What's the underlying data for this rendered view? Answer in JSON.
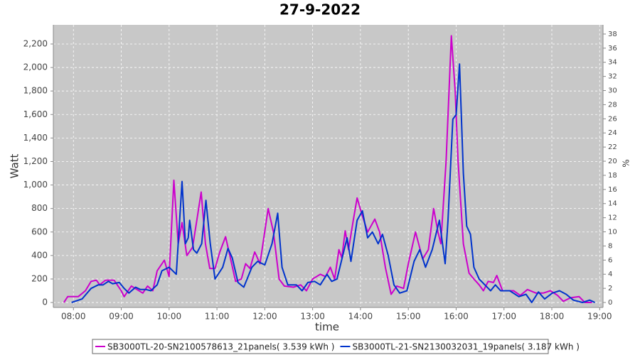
{
  "chart_data": {
    "type": "line",
    "title": "27-9-2022",
    "xlabel": "time",
    "ylabel": "Watt",
    "y2label": "%",
    "xlim": [
      7.58,
      19.07
    ],
    "ylim": [
      -42,
      2363
    ],
    "y2lim": [
      -0.7,
      39.3
    ],
    "xticks": [
      {
        "value": 8,
        "label": "08:00"
      },
      {
        "value": 9,
        "label": "09:00"
      },
      {
        "value": 10,
        "label": "10:00"
      },
      {
        "value": 11,
        "label": "11:00"
      },
      {
        "value": 12,
        "label": "12:00"
      },
      {
        "value": 13,
        "label": "13:00"
      },
      {
        "value": 14,
        "label": "14:00"
      },
      {
        "value": 15,
        "label": "15:00"
      },
      {
        "value": 16,
        "label": "16:00"
      },
      {
        "value": 17,
        "label": "17:00"
      },
      {
        "value": 18,
        "label": "18:00"
      },
      {
        "value": 19,
        "label": "19:00"
      }
    ],
    "yticks": [
      0,
      200,
      400,
      600,
      800,
      {
        "value": 1000,
        "label": "1,000"
      },
      {
        "value": 1200,
        "label": "1,200"
      },
      {
        "value": 1400,
        "label": "1,400"
      },
      {
        "value": 1600,
        "label": "1,600"
      },
      {
        "value": 1800,
        "label": "1,800"
      },
      {
        "value": 2000,
        "label": "2,000"
      },
      {
        "value": 2200,
        "label": "2,200"
      }
    ],
    "y2ticks": [
      0,
      2,
      4,
      6,
      8,
      10,
      12,
      14,
      16,
      18,
      20,
      22,
      24,
      26,
      28,
      30,
      32,
      34,
      36,
      38
    ],
    "grid": true,
    "legend": "bottom",
    "series": [
      {
        "name": "SB3000TL-20-SN2100578613_21panels( 3.539 kWh )",
        "color": "#cc00cc",
        "x": [
          7.8,
          7.88,
          8.1,
          8.25,
          8.37,
          8.48,
          8.55,
          8.67,
          8.85,
          9.0,
          9.06,
          9.21,
          9.33,
          9.45,
          9.55,
          9.66,
          9.75,
          9.9,
          10.0,
          10.1,
          10.19,
          10.27,
          10.37,
          10.49,
          10.58,
          10.67,
          10.76,
          10.85,
          10.96,
          11.06,
          11.18,
          11.27,
          11.39,
          11.51,
          11.6,
          11.69,
          11.79,
          11.9,
          12.07,
          12.18,
          12.3,
          12.41,
          12.6,
          12.75,
          12.87,
          13.0,
          13.16,
          13.27,
          13.37,
          13.46,
          13.55,
          13.61,
          13.68,
          13.75,
          13.85,
          13.93,
          14.03,
          14.15,
          14.3,
          14.4,
          14.52,
          14.64,
          14.76,
          14.9,
          15.0,
          15.15,
          15.3,
          15.42,
          15.53,
          15.62,
          15.68,
          15.79,
          15.9,
          15.98,
          16.04,
          16.15,
          16.27,
          16.37,
          16.48,
          16.57,
          16.67,
          16.78,
          16.85,
          16.97,
          17.2,
          17.34,
          17.49,
          17.67,
          17.82,
          17.97,
          18.12,
          18.24,
          18.39,
          18.57,
          18.69,
          18.84
        ],
        "values": [
          0,
          50,
          50,
          100,
          180,
          190,
          150,
          190,
          190,
          100,
          50,
          140,
          110,
          80,
          140,
          100,
          270,
          360,
          220,
          1040,
          500,
          680,
          400,
          470,
          700,
          940,
          500,
          290,
          290,
          430,
          560,
          400,
          180,
          200,
          330,
          290,
          430,
          330,
          800,
          600,
          200,
          140,
          130,
          150,
          100,
          200,
          240,
          220,
          300,
          200,
          450,
          380,
          610,
          450,
          700,
          890,
          750,
          600,
          710,
          600,
          300,
          70,
          140,
          120,
          330,
          600,
          370,
          450,
          800,
          600,
          500,
          1200,
          2270,
          1800,
          1200,
          500,
          250,
          200,
          150,
          100,
          180,
          170,
          230,
          100,
          100,
          60,
          110,
          80,
          80,
          100,
          60,
          10,
          40,
          50,
          0,
          0
        ]
      },
      {
        "name": "SB3000TL-21-SN2130032031_19panels( 3.187 kWh )",
        "color": "#0033cc",
        "x": [
          7.96,
          8.18,
          8.37,
          8.52,
          8.62,
          8.73,
          8.82,
          8.96,
          9.06,
          9.16,
          9.3,
          9.4,
          9.52,
          9.62,
          9.75,
          9.85,
          10.0,
          10.15,
          10.27,
          10.34,
          10.4,
          10.43,
          10.51,
          10.58,
          10.68,
          10.77,
          10.86,
          10.96,
          11.12,
          11.23,
          11.32,
          11.44,
          11.56,
          11.73,
          11.85,
          12.0,
          12.15,
          12.27,
          12.36,
          12.48,
          12.66,
          12.78,
          12.9,
          13.04,
          13.16,
          13.3,
          13.4,
          13.51,
          13.63,
          13.72,
          13.8,
          13.93,
          14.04,
          14.15,
          14.25,
          14.37,
          14.46,
          14.58,
          14.7,
          14.82,
          14.97,
          15.12,
          15.24,
          15.36,
          15.5,
          15.65,
          15.77,
          15.83,
          15.93,
          16.0,
          16.07,
          16.15,
          16.22,
          16.3,
          16.37,
          16.48,
          16.6,
          16.72,
          16.82,
          16.93,
          17.12,
          17.31,
          17.46,
          17.58,
          17.72,
          17.85,
          18.01,
          18.16,
          18.3,
          18.45,
          18.64,
          18.79,
          18.9
        ],
        "values": [
          0,
          30,
          120,
          150,
          150,
          180,
          160,
          170,
          120,
          80,
          130,
          110,
          110,
          100,
          150,
          270,
          300,
          240,
          1030,
          500,
          550,
          700,
          450,
          420,
          500,
          870,
          500,
          200,
          300,
          460,
          380,
          170,
          130,
          300,
          350,
          320,
          500,
          760,
          300,
          150,
          150,
          100,
          170,
          180,
          150,
          240,
          180,
          200,
          400,
          550,
          350,
          700,
          780,
          550,
          600,
          500,
          580,
          400,
          150,
          80,
          100,
          350,
          450,
          300,
          450,
          700,
          330,
          700,
          1560,
          1600,
          2030,
          1100,
          650,
          580,
          300,
          200,
          150,
          100,
          150,
          100,
          100,
          50,
          70,
          0,
          90,
          30,
          80,
          100,
          70,
          20,
          0,
          20,
          0
        ]
      }
    ]
  }
}
